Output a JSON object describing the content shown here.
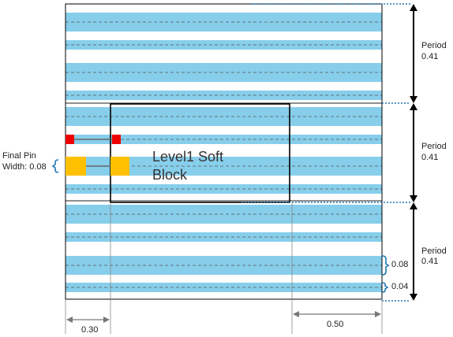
{
  "block": {
    "line1": "Level1 Soft",
    "line2": "Block"
  },
  "periods": [
    {
      "label": "Period",
      "value": "0.41"
    },
    {
      "label": "Period",
      "value": "0.41"
    },
    {
      "label": "Period",
      "value": "0.41"
    }
  ],
  "pin": {
    "line1": "Final Pin",
    "line2": "Width: 0.08"
  },
  "track_widths": {
    "wide": "0.08",
    "narrow": "0.04"
  },
  "offsets": {
    "left": "0.30",
    "right": "0.50"
  },
  "colors": {
    "track": "#87ceeb",
    "outline": "#000000",
    "pin_small": "#ee0000",
    "pin_large": "#ffc000",
    "accent": "#1f77b4"
  }
}
